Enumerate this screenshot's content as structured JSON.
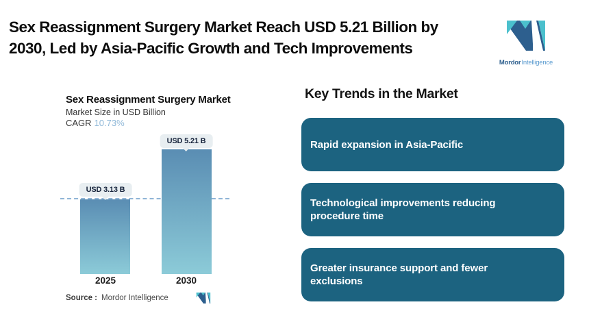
{
  "header": {
    "title_line1": "Sex Reassignment Surgery Market Reach USD 5.21 Billion by",
    "title_line2": "2030, Led by Asia-Pacific Growth and Tech Improvements"
  },
  "brand": {
    "name_bold": "Mordor",
    "name_light": "Intelligence",
    "navy": "#2d5f8e",
    "teal": "#4bc0cd"
  },
  "chart": {
    "title": "Sex Reassignment Surgery Market",
    "subtitle": "Market Size in USD Billion",
    "cagr_label": "CAGR",
    "cagr_value": "10.73%",
    "source_label": "Source :",
    "source_value": "Mordor Intelligence"
  },
  "chart_data": {
    "type": "bar",
    "title": "Sex Reassignment Surgery Market",
    "ylabel": "Market Size in USD Billion",
    "cagr": "10.73%",
    "categories": [
      "2025",
      "2030"
    ],
    "values": [
      3.13,
      5.21
    ],
    "value_labels": [
      "USD 3.13 B",
      "USD 5.21 B"
    ],
    "reference_line": 3.13,
    "ylim": [
      0,
      5.21
    ],
    "grid": false,
    "legend": false,
    "bar_gradient": [
      "#5a8db3",
      "#8ccbd8"
    ],
    "reference_line_color": "#90b5d7",
    "label_pill_bg": "#e8eef1"
  },
  "trends": {
    "heading": "Key Trends in the Market",
    "box_color": "#1c6380",
    "items": [
      "Rapid expansion in Asia-Pacific",
      "Technological improvements reducing procedure time",
      "Greater insurance support and fewer exclusions"
    ]
  }
}
